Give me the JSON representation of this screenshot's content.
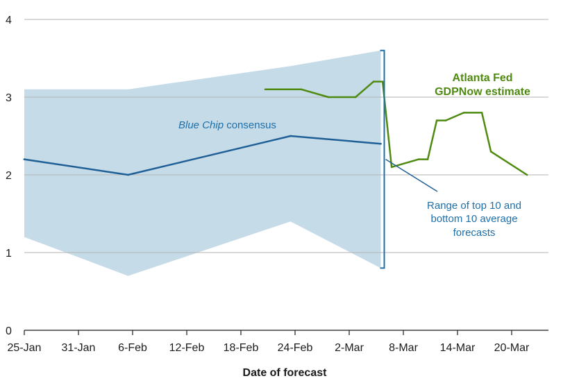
{
  "chart_data": {
    "type": "line",
    "title": "",
    "xlabel": "Date of forecast",
    "ylabel": "",
    "ylim": [
      0,
      4
    ],
    "yticks": [
      0,
      1,
      2,
      3,
      4
    ],
    "grid": "horizontal",
    "x_ticks": [
      {
        "day": 0,
        "label": "25-Jan"
      },
      {
        "day": 6,
        "label": "31-Jan"
      },
      {
        "day": 12,
        "label": "6-Feb"
      },
      {
        "day": 18,
        "label": "12-Feb"
      },
      {
        "day": 24,
        "label": "18-Feb"
      },
      {
        "day": 30,
        "label": "24-Feb"
      },
      {
        "day": 36,
        "label": "2-Mar"
      },
      {
        "day": 42,
        "label": "8-Mar"
      },
      {
        "day": 48,
        "label": "14-Mar"
      },
      {
        "day": 54,
        "label": "20-Mar"
      }
    ],
    "x_range": [
      0,
      57
    ],
    "series": [
      {
        "name": "Blue Chip consensus",
        "color": "#1f5f96",
        "points": [
          {
            "x": 0,
            "y": 2.2
          },
          {
            "x": 11.5,
            "y": 2.0
          },
          {
            "x": 29.5,
            "y": 2.5
          },
          {
            "x": 39.5,
            "y": 2.4
          }
        ]
      },
      {
        "name": "Atlanta Fed GDPNow estimate",
        "color": "#4f8a10",
        "points": [
          {
            "x": 26.7,
            "y": 3.1
          },
          {
            "x": 30.7,
            "y": 3.1
          },
          {
            "x": 33.7,
            "y": 3.0
          },
          {
            "x": 36.7,
            "y": 3.0
          },
          {
            "x": 38.7,
            "y": 3.2
          },
          {
            "x": 39.7,
            "y": 3.2
          },
          {
            "x": 40.7,
            "y": 2.1
          },
          {
            "x": 43.7,
            "y": 2.2
          },
          {
            "x": 44.7,
            "y": 2.2
          },
          {
            "x": 45.7,
            "y": 2.7
          },
          {
            "x": 46.7,
            "y": 2.7
          },
          {
            "x": 48.7,
            "y": 2.8
          },
          {
            "x": 50.7,
            "y": 2.8
          },
          {
            "x": 51.7,
            "y": 2.3
          },
          {
            "x": 55.7,
            "y": 2.0
          }
        ]
      }
    ],
    "range_band": {
      "name": "Range of top 10 and bottom 10 average forecasts",
      "color": "#c5dbe8",
      "x": [
        0,
        11.5,
        29.5,
        39.5
      ],
      "upper": [
        3.1,
        3.1,
        3.4,
        3.6
      ],
      "lower": [
        1.2,
        0.7,
        1.4,
        0.8
      ]
    },
    "annotations": {
      "blue_chip_label_italic": "Blue Chip",
      "blue_chip_label_rest": " consensus",
      "gdpnow_label_line1": "Atlanta Fed",
      "gdpnow_label_line2": "GDPNow estimate",
      "range_label_line1": "Range of top 10 and",
      "range_label_line2": "bottom 10 average",
      "range_label_line3": "forecasts"
    },
    "colors": {
      "grid": "#b3b3b3",
      "axis": "#1a1a1a",
      "bracket": "#1e6fa8"
    }
  }
}
